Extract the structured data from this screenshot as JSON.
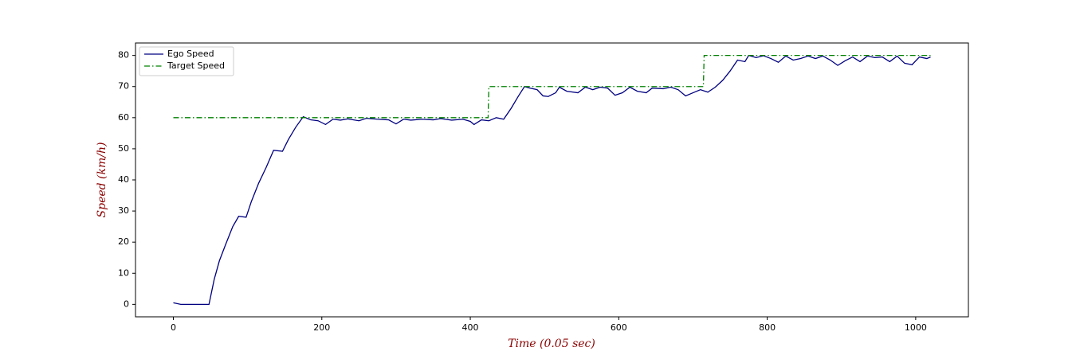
{
  "chart_data": {
    "type": "line",
    "xlabel": "Time (0.05 sec)",
    "ylabel": "Speed (km/h)",
    "xlim": [
      -51,
      1071
    ],
    "xticks": [
      0,
      200,
      400,
      600,
      800,
      1000
    ],
    "ylim": [
      -4,
      84
    ],
    "yticks": [
      0,
      10,
      20,
      30,
      40,
      50,
      60,
      70,
      80
    ],
    "legend": "upper left",
    "series": [
      {
        "name": "Ego Speed",
        "color": "#000080",
        "dash": "solid",
        "x": [
          0,
          10,
          20,
          30,
          40,
          48,
          55,
          62,
          70,
          80,
          88,
          98,
          105,
          115,
          125,
          135,
          147,
          155,
          165,
          175,
          185,
          195,
          205,
          215,
          225,
          235,
          250,
          260,
          275,
          290,
          300,
          310,
          320,
          335,
          350,
          360,
          375,
          390,
          400,
          405,
          415,
          425,
          435,
          445,
          455,
          465,
          473,
          480,
          490,
          498,
          505,
          515,
          520,
          530,
          545,
          555,
          565,
          575,
          585,
          595,
          605,
          615,
          625,
          637,
          645,
          660,
          670,
          680,
          690,
          700,
          710,
          720,
          730,
          740,
          750,
          760,
          770,
          775,
          785,
          795,
          805,
          815,
          825,
          835,
          845,
          855,
          865,
          875,
          885,
          895,
          905,
          915,
          925,
          935,
          945,
          955,
          965,
          975,
          985,
          995,
          1005,
          1015,
          1020
        ],
        "values": [
          0.5,
          0,
          0,
          0,
          0,
          0,
          8,
          14,
          19,
          25,
          28.3,
          28,
          33,
          39,
          44,
          49.5,
          49.2,
          53,
          57,
          60.3,
          59.3,
          59,
          57.8,
          59.5,
          59.2,
          59.6,
          59,
          59.8,
          59.5,
          59.3,
          58,
          59.5,
          59.2,
          59.5,
          59.3,
          59.7,
          59.2,
          59.5,
          58.8,
          57.8,
          59.3,
          59,
          60,
          59.5,
          63,
          67,
          70,
          69.5,
          69,
          67,
          66.8,
          68,
          69.8,
          68.5,
          68,
          69.8,
          69,
          69.8,
          69.5,
          67.2,
          68,
          69.8,
          68.5,
          68,
          69.5,
          69.3,
          69.8,
          69,
          67,
          68,
          69,
          68.2,
          69.8,
          72,
          75,
          78.5,
          78,
          80,
          79.3,
          79.9,
          79,
          77.8,
          79.8,
          78.5,
          79,
          79.8,
          79,
          79.8,
          78.5,
          76.8,
          78.3,
          79.5,
          78,
          79.8,
          79.3,
          79.5,
          78,
          79.8,
          77.5,
          77,
          79.5,
          79,
          79.5
        ]
      },
      {
        "name": "Target Speed",
        "color": "#008000",
        "dash": "dashdot",
        "x": [
          0,
          424,
          425,
          714,
          715,
          1020
        ],
        "values": [
          60,
          60,
          70,
          70,
          80,
          80
        ]
      }
    ]
  }
}
